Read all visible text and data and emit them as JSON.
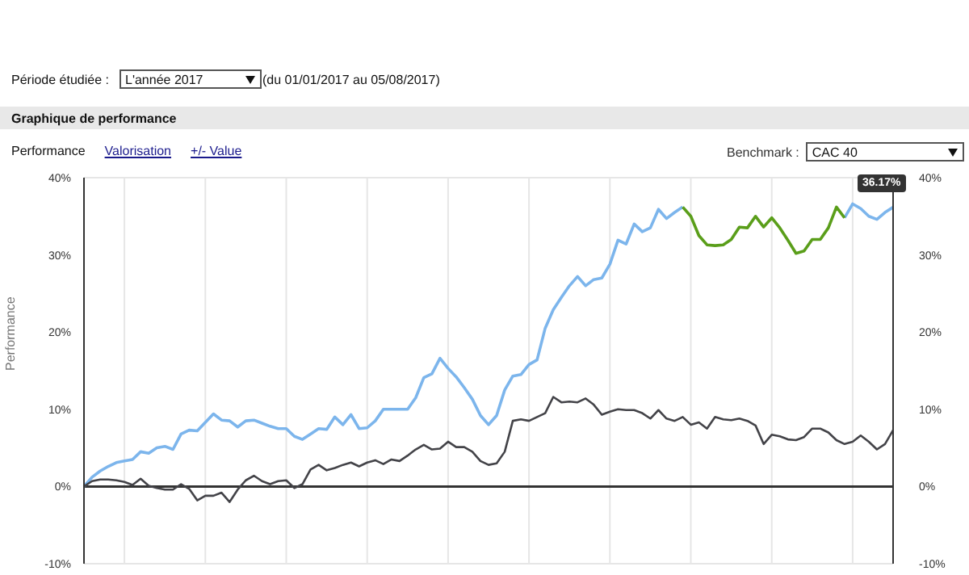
{
  "chart_data": {
    "type": "line",
    "title": "Graphique de performance",
    "ylabel": "Performance",
    "annotations": [
      "Période étudiée :",
      "L'année 2017",
      "(du 01/01/2017 au 05/08/2017)",
      "Performance",
      "Valorisation",
      "+/- Value",
      "Benchmark :",
      "CAC 40",
      {
        "text": "36.17%",
        "y": 36.17
      }
    ],
    "categories": [
      null,
      null,
      null,
      null,
      null,
      null,
      null,
      null,
      null,
      null,
      null,
      null,
      null,
      null,
      null,
      null,
      null,
      null,
      null,
      null,
      null,
      null,
      null,
      null,
      null,
      null,
      null,
      null,
      null,
      null,
      null,
      null,
      null,
      null,
      null,
      null,
      null,
      null,
      null,
      null,
      null,
      null,
      null,
      null,
      null,
      null,
      null,
      null,
      null,
      null,
      null,
      null,
      null,
      null,
      null,
      null,
      null,
      null,
      null,
      null,
      null,
      null,
      null,
      null,
      null,
      null,
      null,
      null,
      null,
      null,
      null,
      null,
      null,
      null,
      null,
      null,
      null,
      null,
      null,
      null,
      null,
      null,
      null,
      null,
      null,
      null,
      null,
      null,
      null,
      null,
      null,
      null,
      null,
      null,
      null,
      null,
      null,
      null,
      null,
      null,
      null
    ],
    "series": [
      {
        "color": "#7cb5ec",
        "values": [
          0,
          1.2,
          2.0,
          2.6,
          3.1,
          3.3,
          3.5,
          4.5,
          4.3,
          5.0,
          5.2,
          4.8,
          6.8,
          7.3,
          7.2,
          8.3,
          9.4,
          8.6,
          8.5,
          7.7,
          8.5,
          8.6,
          8.2,
          7.8,
          7.5,
          7.5,
          6.5,
          6.1,
          6.8,
          7.5,
          7.4,
          9.0,
          8.0,
          9.3,
          7.5,
          7.6,
          8.5,
          10.0,
          10.0,
          10.0,
          10.0,
          11.5,
          14.1,
          14.6,
          16.6,
          15.3,
          14.2,
          12.8,
          11.3,
          9.2,
          8.0,
          9.2,
          12.5,
          14.3,
          14.5,
          15.8,
          16.4,
          20.5,
          22.9,
          24.5,
          26.0,
          27.2,
          26.0,
          26.8,
          27.0,
          28.8,
          31.9,
          31.4,
          34.0,
          33.0,
          33.5,
          35.9,
          34.7,
          35.5,
          36.2,
          null,
          null,
          null,
          null,
          null,
          null,
          null,
          null,
          null,
          null,
          null,
          null,
          null,
          null,
          null,
          null,
          null,
          null,
          null,
          34.8,
          36.6,
          36.0,
          35.0,
          34.6,
          35.5,
          36.17
        ]
      },
      {
        "color": "#5a9e1a",
        "values": [
          null,
          null,
          null,
          null,
          null,
          null,
          null,
          null,
          null,
          null,
          null,
          null,
          null,
          null,
          null,
          null,
          null,
          null,
          null,
          null,
          null,
          null,
          null,
          null,
          null,
          null,
          null,
          null,
          null,
          null,
          null,
          null,
          null,
          null,
          null,
          null,
          null,
          null,
          null,
          null,
          null,
          null,
          null,
          null,
          null,
          null,
          null,
          null,
          null,
          null,
          null,
          null,
          null,
          null,
          null,
          null,
          null,
          null,
          null,
          null,
          null,
          null,
          null,
          null,
          null,
          null,
          null,
          null,
          null,
          null,
          null,
          null,
          null,
          null,
          36.2,
          35.0,
          32.5,
          31.3,
          31.2,
          31.3,
          32.0,
          33.6,
          33.5,
          35.0,
          33.6,
          34.8,
          33.5,
          31.9,
          30.2,
          30.5,
          32.0,
          32.0,
          33.5,
          36.2,
          34.8,
          null,
          null,
          null,
          null,
          null,
          null
        ]
      },
      {
        "color": "#434348",
        "values": [
          0,
          0.7,
          0.9,
          0.9,
          0.8,
          0.6,
          0.2,
          1.0,
          0.1,
          -0.2,
          -0.4,
          -0.4,
          0.3,
          -0.3,
          -1.8,
          -1.2,
          -1.2,
          -0.8,
          -2.0,
          -0.4,
          0.8,
          1.4,
          0.7,
          0.3,
          0.7,
          0.8,
          -0.2,
          0.3,
          2.2,
          2.8,
          2.1,
          2.4,
          2.8,
          3.1,
          2.6,
          3.1,
          3.4,
          2.9,
          3.5,
          3.3,
          4.0,
          4.8,
          5.4,
          4.8,
          4.9,
          5.8,
          5.1,
          5.1,
          4.5,
          3.3,
          2.8,
          3.0,
          4.5,
          8.5,
          8.7,
          8.5,
          9.0,
          9.5,
          11.6,
          10.9,
          11.0,
          10.9,
          11.4,
          10.6,
          9.3,
          9.7,
          10.0,
          9.9,
          9.9,
          9.5,
          8.8,
          9.9,
          8.8,
          8.5,
          9.0,
          8.0,
          8.3,
          7.5,
          9.0,
          8.7,
          8.6,
          8.8,
          8.5,
          7.9,
          5.5,
          6.7,
          6.5,
          6.1,
          6.0,
          6.4,
          7.5,
          7.5,
          7.0,
          6.0,
          5.5,
          5.8,
          6.6,
          5.8,
          4.8,
          5.5,
          7.3
        ]
      }
    ],
    "ylim": [
      -10,
      40
    ],
    "yticks": [
      {
        "value": -10,
        "label": "-10%"
      },
      {
        "value": 0,
        "label": "0%"
      },
      {
        "value": 10,
        "label": "10%"
      },
      {
        "value": 20,
        "label": "20%"
      },
      {
        "value": 30,
        "label": "30%"
      },
      {
        "value": 40,
        "label": "40%"
      }
    ],
    "y2lim": [
      -10,
      40
    ],
    "y2ticks": [
      {
        "value": -10,
        "label": "-10%"
      },
      {
        "value": 0,
        "label": "0%"
      },
      {
        "value": 10,
        "label": "10%"
      },
      {
        "value": 20,
        "label": "20%"
      },
      {
        "value": 30,
        "label": "30%"
      },
      {
        "value": 40,
        "label": "40%"
      }
    ],
    "ref_lines": [
      {
        "axis": "y",
        "value": 0,
        "color": "#333333"
      }
    ],
    "grid": true,
    "marker": "none",
    "line_style": "solid",
    "legend": false
  }
}
